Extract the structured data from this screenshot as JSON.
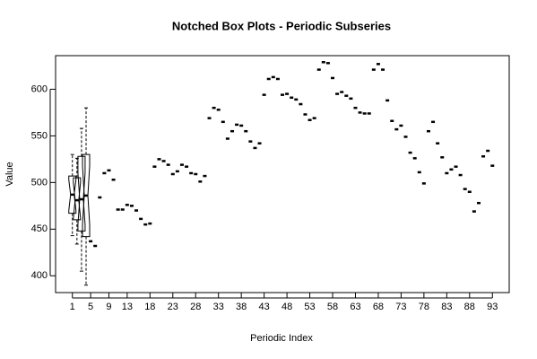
{
  "chart_data": {
    "type": "boxplot",
    "title": "Notched Box Plots - Periodic Subseries",
    "xlabel": "Periodic Index",
    "ylabel": "Value",
    "categories": [
      1,
      null,
      null,
      null,
      5,
      null,
      null,
      null,
      9,
      null,
      null,
      null,
      13,
      null,
      null,
      null,
      null,
      18,
      null,
      null,
      null,
      null,
      23,
      null,
      null,
      null,
      null,
      28,
      null,
      null,
      null,
      null,
      33,
      null,
      null,
      null,
      null,
      38,
      null,
      null,
      null,
      null,
      43,
      null,
      null,
      null,
      null,
      48,
      null,
      null,
      null,
      null,
      53,
      null,
      null,
      null,
      null,
      58,
      null,
      null,
      null,
      null,
      63,
      null,
      null,
      null,
      null,
      68,
      null,
      null,
      null,
      null,
      73,
      null,
      null,
      null,
      null,
      78,
      null,
      null,
      null,
      null,
      83,
      null,
      null,
      null,
      null,
      88,
      null,
      null,
      null,
      null,
      93
    ],
    "groups": [
      {
        "low": 443,
        "q1": 467,
        "notch_low": 470,
        "median": 487,
        "notch_high": 503,
        "q3": 507,
        "high": 530
      },
      {
        "low": 434,
        "q1": 460,
        "notch_low": 462,
        "median": 481,
        "notch_high": 500,
        "q3": 505,
        "high": 526
      },
      {
        "low": 405,
        "q1": 448,
        "notch_low": 455,
        "median": 482,
        "notch_high": 510,
        "q3": 528,
        "high": 558
      },
      {
        "low": 390,
        "q1": 442,
        "notch_low": 455,
        "median": 486,
        "notch_high": 518,
        "q3": 530,
        "high": 580
      },
      {
        "median": 437
      },
      {
        "median": 432
      },
      {
        "median": 484
      },
      {
        "median": 510
      },
      {
        "median": 513
      },
      {
        "median": 503
      },
      {
        "median": 471
      },
      {
        "median": 471
      },
      {
        "median": 476
      },
      {
        "median": 475
      },
      {
        "median": 470
      },
      {
        "median": 461
      },
      {
        "median": 455
      },
      {
        "median": 456
      },
      {
        "median": 517
      },
      {
        "median": 525
      },
      {
        "median": 523
      },
      {
        "median": 519
      },
      {
        "median": 509
      },
      {
        "median": 512
      },
      {
        "median": 519
      },
      {
        "median": 517
      },
      {
        "median": 510
      },
      {
        "median": 509
      },
      {
        "median": 501
      },
      {
        "median": 507
      },
      {
        "median": 569
      },
      {
        "median": 580
      },
      {
        "median": 578
      },
      {
        "median": 565
      },
      {
        "median": 547
      },
      {
        "median": 555
      },
      {
        "median": 562
      },
      {
        "median": 561
      },
      {
        "median": 555
      },
      {
        "median": 544
      },
      {
        "median": 537
      },
      {
        "median": 542
      },
      {
        "median": 594
      },
      {
        "median": 611
      },
      {
        "median": 613
      },
      {
        "median": 611
      },
      {
        "median": 594
      },
      {
        "median": 595
      },
      {
        "median": 591
      },
      {
        "median": 589
      },
      {
        "median": 584
      },
      {
        "median": 573
      },
      {
        "median": 567
      },
      {
        "median": 569
      },
      {
        "median": 621
      },
      {
        "median": 629
      },
      {
        "median": 628
      },
      {
        "median": 612
      },
      {
        "median": 595
      },
      {
        "median": 597
      },
      {
        "median": 593
      },
      {
        "median": 590
      },
      {
        "median": 580
      },
      {
        "median": 575
      },
      {
        "median": 574
      },
      {
        "median": 574
      },
      {
        "median": 621
      },
      {
        "median": 627
      },
      {
        "median": 621
      },
      {
        "median": 588
      },
      {
        "median": 566
      },
      {
        "median": 557
      },
      {
        "median": 561
      },
      {
        "median": 549
      },
      {
        "median": 532
      },
      {
        "median": 526
      },
      {
        "median": 511
      },
      {
        "median": 499
      },
      {
        "median": 555
      },
      {
        "median": 565
      },
      {
        "median": 542
      },
      {
        "median": 527
      },
      {
        "median": 510
      },
      {
        "median": 514
      },
      {
        "median": 517
      },
      {
        "median": 508
      },
      {
        "median": 493
      },
      {
        "median": 490
      },
      {
        "median": 469
      },
      {
        "median": 478
      },
      {
        "median": 528
      },
      {
        "median": 534
      },
      {
        "median": 518
      }
    ],
    "color": "#000000",
    "ylim": [
      382,
      636
    ],
    "yticks": [
      400,
      450,
      500,
      550,
      600
    ]
  }
}
